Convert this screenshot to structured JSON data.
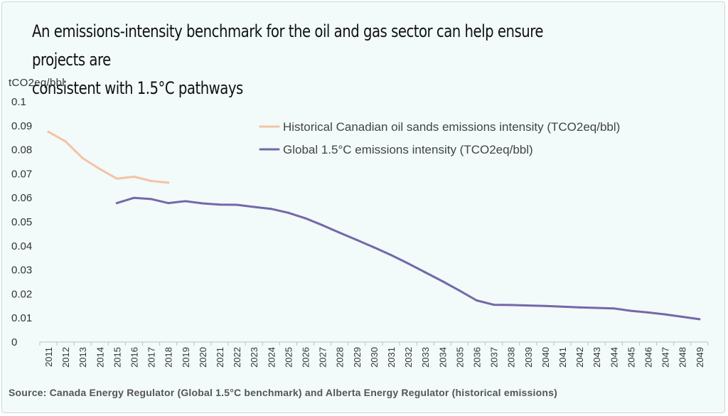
{
  "title": "An emissions-intensity benchmark for the oil and gas sector can help ensure projects are consistent with 1.5°C pathways",
  "title_lines": [
    "An emissions-intensity benchmark for the oil and gas sector can help ensure projects are",
    "consistent with 1.5°C pathways"
  ],
  "source": "Source: Canada Energy Regulator (Global 1.5°C benchmark) and Alberta Energy Regulator (historical emissions)",
  "colors": {
    "background": "#f2fafa",
    "historical": "#f2c4a5",
    "global": "#7468a8"
  },
  "chart_data": {
    "type": "line",
    "ylabel": "tCO2eq/bbl",
    "xlabel": "",
    "ylim": [
      0,
      0.1
    ],
    "yticks": [
      0,
      0.01,
      0.02,
      0.03,
      0.04,
      0.05,
      0.06,
      0.07,
      0.08,
      0.09,
      0.1
    ],
    "ytick_labels": [
      "0",
      "0.01",
      "0.02",
      "0.03",
      "0.04",
      "0.05",
      "0.06",
      "0.07",
      "0.08",
      "0.09",
      "0.1"
    ],
    "categories": [
      "2011",
      "2012",
      "2013",
      "2014",
      "2015",
      "2016",
      "2017",
      "2018",
      "2019",
      "2020",
      "2021",
      "2022",
      "2023",
      "2024",
      "2025",
      "2026",
      "2027",
      "2028",
      "2029",
      "2030",
      "2031",
      "2032",
      "2033",
      "2034",
      "2035",
      "2036",
      "2037",
      "2038",
      "2039",
      "2040",
      "2041",
      "2042",
      "2043",
      "2044",
      "2045",
      "2046",
      "2047",
      "2048",
      "2049"
    ],
    "grid": false,
    "legend_position": "top-right",
    "series": [
      {
        "name": "Historical Canadian oil sands emissions intensity (TCO2eq/bbl)",
        "color": "#f2c4a5",
        "x": [
          "2011",
          "2012",
          "2013",
          "2014",
          "2015",
          "2016",
          "2017",
          "2018"
        ],
        "values": [
          0.0875,
          0.0835,
          0.0765,
          0.072,
          0.068,
          0.0688,
          0.067,
          0.0663
        ]
      },
      {
        "name": "Global 1.5°C emissions intensity (TCO2eq/bbl)",
        "color": "#7468a8",
        "x": [
          "2015",
          "2016",
          "2017",
          "2018",
          "2019",
          "2020",
          "2021",
          "2022",
          "2023",
          "2024",
          "2025",
          "2026",
          "2027",
          "2028",
          "2029",
          "2030",
          "2031",
          "2032",
          "2033",
          "2034",
          "2035",
          "2036",
          "2037",
          "2038",
          "2039",
          "2040",
          "2041",
          "2042",
          "2043",
          "2044",
          "2045",
          "2046",
          "2047",
          "2048",
          "2049"
        ],
        "values": [
          0.0578,
          0.06,
          0.0595,
          0.0578,
          0.0586,
          0.0577,
          0.0572,
          0.0571,
          0.0562,
          0.0554,
          0.0538,
          0.0515,
          0.0486,
          0.0455,
          0.0425,
          0.0394,
          0.0362,
          0.0327,
          0.029,
          0.0253,
          0.0214,
          0.0173,
          0.0155,
          0.0154,
          0.0152,
          0.015,
          0.0147,
          0.0144,
          0.0142,
          0.014,
          0.013,
          0.0123,
          0.0115,
          0.0105,
          0.0095
        ]
      }
    ]
  }
}
